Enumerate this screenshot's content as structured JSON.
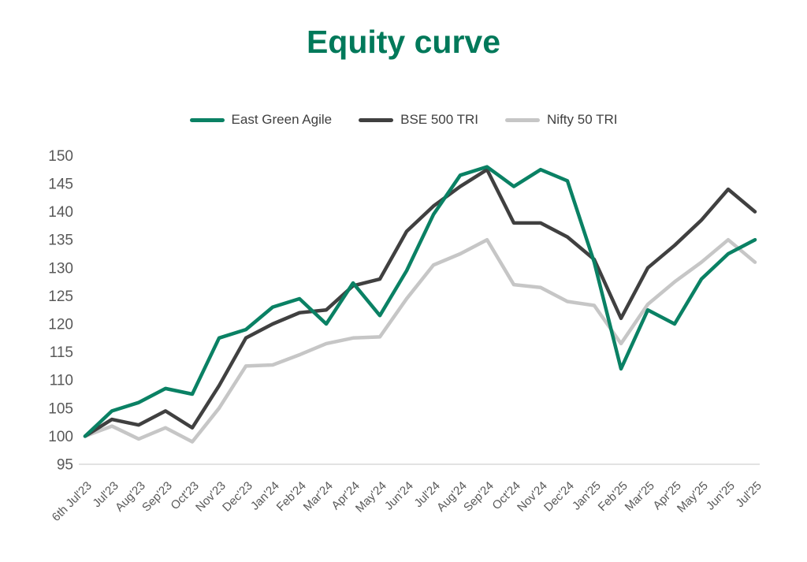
{
  "page": {
    "background": "#ffffff"
  },
  "colors": {
    "title": "#00795A",
    "axis_labels": "#595959",
    "baseline_grid": "#D9D9D9",
    "legend_text": "#404040"
  },
  "legend": {
    "items": [
      {
        "label": "East Green Agile",
        "color": "#0A8164"
      },
      {
        "label": "BSE 500 TRI",
        "color": "#404040"
      },
      {
        "label": "Nifty 50 TRI",
        "color": "#C6C6C6"
      }
    ]
  },
  "chart_data": {
    "type": "line",
    "title": "Equity curve",
    "categories": [
      "6th Jul'23",
      "Jul'23",
      "Aug'23",
      "Sep'23",
      "Oct'23",
      "Nov'23",
      "Dec'23",
      "Jan'24",
      "Feb'24",
      "Mar'24",
      "Apr'24",
      "May'24",
      "Jun'24",
      "Jul'24",
      "Aug'24",
      "Sep'24",
      "Oct'24",
      "Nov'24",
      "Dec'24",
      "Jan'25",
      "Feb'25",
      "Mar'25",
      "Apr'25",
      "May'25",
      "Jun'25",
      "Jul'25"
    ],
    "series": [
      {
        "name": "East Green Agile",
        "color": "#0A8164",
        "values": [
          100,
          104.5,
          106,
          108.5,
          107.5,
          117.5,
          119,
          123,
          124.5,
          120,
          127.3,
          121.5,
          129.5,
          139.5,
          146.5,
          148,
          144.5,
          147.5,
          145.5,
          131,
          112,
          122.5,
          120,
          128,
          132.5,
          135
        ]
      },
      {
        "name": "BSE 500 TRI",
        "color": "#404040",
        "values": [
          100,
          103,
          102,
          104.5,
          101.5,
          109,
          117.5,
          120,
          122,
          122.5,
          126.8,
          128,
          136.5,
          141,
          144.5,
          147.5,
          138,
          138,
          135.5,
          131.5,
          121,
          130,
          134,
          138.5,
          144,
          140
        ]
      },
      {
        "name": "Nifty 50 TRI",
        "color": "#C6C6C6",
        "values": [
          100,
          101.8,
          99.5,
          101.5,
          99,
          105,
          112.5,
          112.7,
          114.5,
          116.5,
          117.5,
          117.7,
          124.5,
          130.5,
          132.5,
          135,
          127,
          126.5,
          124,
          123.3,
          116.5,
          123.5,
          127.5,
          131,
          135,
          131
        ]
      }
    ],
    "y_ticks": [
      150,
      145,
      140,
      135,
      130,
      125,
      120,
      115,
      110,
      105,
      100,
      95
    ],
    "ylim": [
      95,
      150
    ],
    "xlabel": "",
    "ylabel": "",
    "grid": "baseline-only",
    "legend_position": "top",
    "x_label_rotation": -45
  }
}
